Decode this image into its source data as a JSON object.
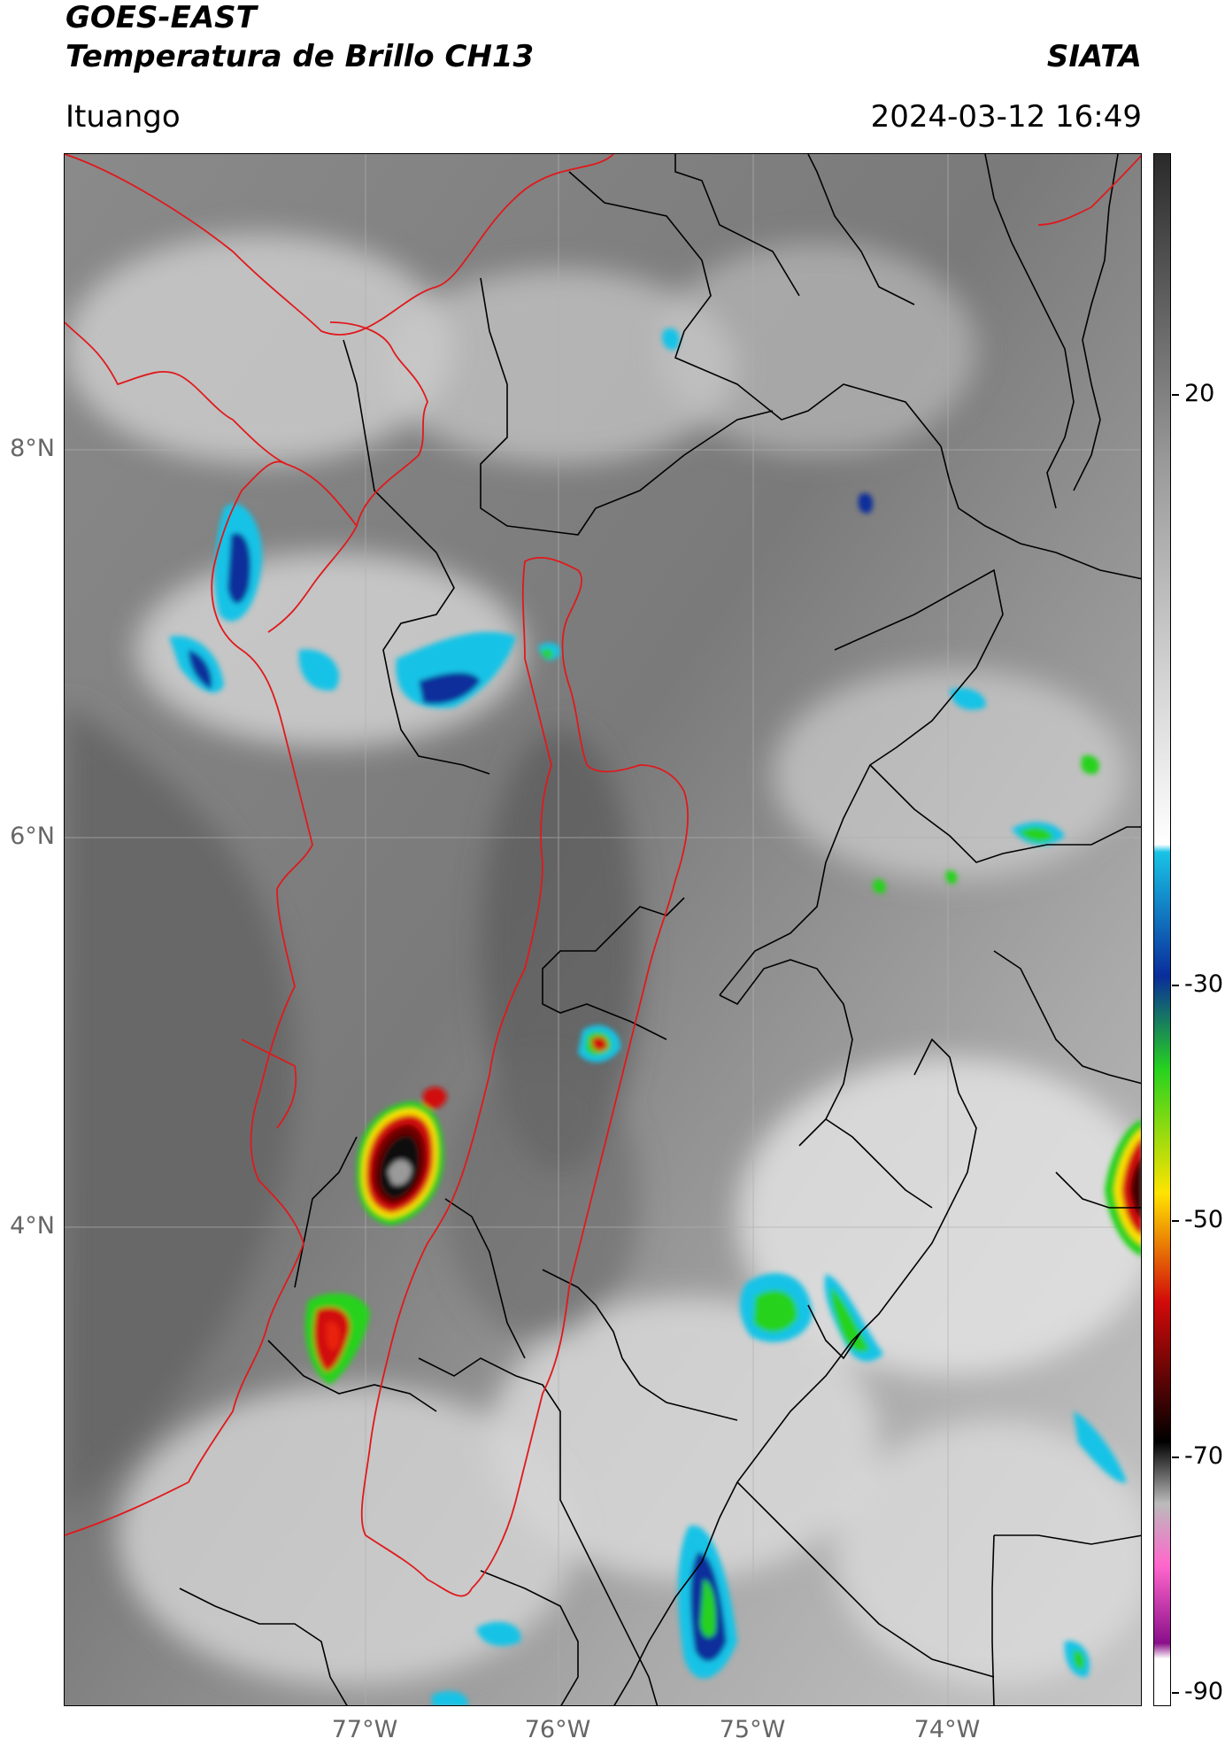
{
  "header": {
    "satellite": "GOES-EAST",
    "product": "Temperatura de Brillo CH13",
    "organization": "SIATA",
    "location": "Ituango",
    "datetime": "2024-03-12 16:49"
  },
  "map": {
    "lat_ticks": [
      "8°N",
      "6°N",
      "4°N"
    ],
    "lon_ticks": [
      "77°W",
      "76°W",
      "75°W",
      "74°W"
    ],
    "boundary_colors": {
      "department": "#e0191c",
      "country": "#000000"
    }
  },
  "colorbar": {
    "ticks": [
      "20",
      "-30",
      "-50",
      "-70",
      "-90"
    ],
    "colors": {
      "warm": "#2a2a2a",
      "mid": "#9a9a9a",
      "cool": "#ffffff",
      "cyan": "#19c3e6",
      "blue": "#0a2d9b",
      "green": "#27d21f",
      "yellow": "#ffe300",
      "red": "#d20a0a",
      "black": "#000000",
      "magenta": "#ff66cc",
      "purple": "#8a0f8a"
    }
  }
}
